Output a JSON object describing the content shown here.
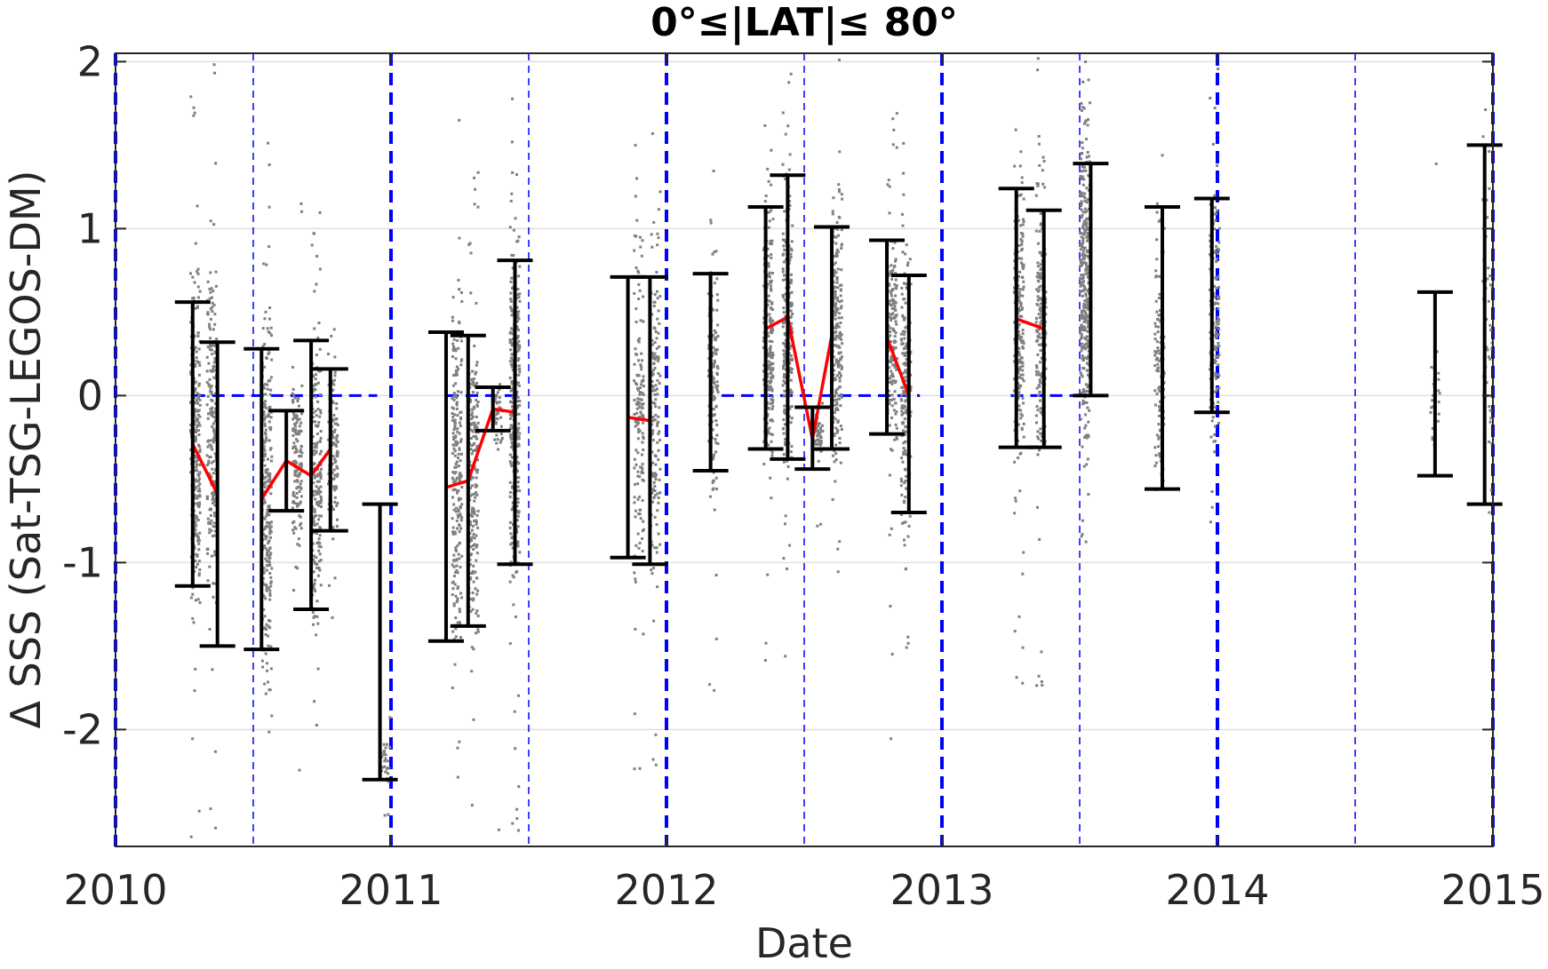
{
  "chart_data": {
    "type": "scatter",
    "title": "0°≤|LAT|≤ 80°",
    "xlabel": "Date",
    "ylabel": "Δ SSS (Sat-TSG-LEGOS-DM)",
    "xlim": [
      2010.0,
      2015.0
    ],
    "ylim": [
      -2.7,
      2.05
    ],
    "xticks": [
      2010,
      2011,
      2012,
      2013,
      2014,
      2015
    ],
    "xtick_labels": [
      "2010",
      "2011",
      "2012",
      "2013",
      "2014",
      "2015"
    ],
    "yticks": [
      -2,
      -1,
      0,
      1,
      2
    ],
    "ytick_labels": [
      "-2",
      "-1",
      "0",
      "1",
      "2"
    ],
    "grid": true,
    "colors": {
      "scatter": "#808080",
      "error_bars": "#000000",
      "mean_line": "#ff0000",
      "reference": "#0000ff",
      "grid": "#e0e0e0"
    },
    "reference_lines": {
      "year_boundaries": [
        2010.0,
        2011.0,
        2012.0,
        2013.0,
        2014.0,
        2015.0
      ],
      "mid_years": [
        2010.5,
        2011.5,
        2012.5,
        2013.5,
        2014.5
      ],
      "zero_segments": [
        [
          2010.28,
          2010.95
        ],
        [
          2011.2,
          2011.48
        ],
        [
          2012.2,
          2012.92
        ],
        [
          2013.25,
          2013.5
        ]
      ]
    },
    "series": [
      {
        "kind": "scatter_strips",
        "strips": [
          {
            "x": 2010.29,
            "center": -0.3,
            "spread": 0.9,
            "count": 260,
            "ymin": -2.7,
            "ymax": 2.05
          },
          {
            "x": 2010.35,
            "center": -0.2,
            "spread": 0.9,
            "count": 220,
            "ymin": -2.7,
            "ymax": 2.05
          },
          {
            "x": 2010.55,
            "center": -0.6,
            "spread": 0.9,
            "count": 260,
            "ymin": -2.7,
            "ymax": 1.8
          },
          {
            "x": 2010.66,
            "center": -0.4,
            "spread": 0.45,
            "count": 140,
            "ymin": -2.4,
            "ymax": 1.2
          },
          {
            "x": 2010.73,
            "center": -0.5,
            "spread": 0.8,
            "count": 200,
            "ymin": -2.2,
            "ymax": 1.2
          },
          {
            "x": 2010.79,
            "center": -0.3,
            "spread": 0.5,
            "count": 120,
            "ymin": -1.9,
            "ymax": 0.5
          },
          {
            "x": 2010.98,
            "center": -2.2,
            "spread": 0.2,
            "count": 30,
            "ymin": -2.7,
            "ymax": -1.9
          },
          {
            "x": 2011.24,
            "center": -0.5,
            "spread": 0.9,
            "count": 220,
            "ymin": -2.6,
            "ymax": 1.7
          },
          {
            "x": 2011.3,
            "center": -0.5,
            "spread": 0.9,
            "count": 200,
            "ymin": -2.6,
            "ymax": 1.7
          },
          {
            "x": 2011.39,
            "center": -0.1,
            "spread": 0.15,
            "count": 40,
            "ymin": -2.7,
            "ymax": 0.9
          },
          {
            "x": 2011.45,
            "center": -0.1,
            "spread": 0.9,
            "count": 320,
            "ymin": -2.7,
            "ymax": 2.05
          },
          {
            "x": 2011.9,
            "center": -0.1,
            "spread": 0.85,
            "count": 150,
            "ymin": -2.3,
            "ymax": 1.6
          },
          {
            "x": 2011.96,
            "center": -0.15,
            "spread": 0.85,
            "count": 150,
            "ymin": -2.3,
            "ymax": 1.6
          },
          {
            "x": 2012.17,
            "center": 0.15,
            "spread": 0.6,
            "count": 150,
            "ymin": -1.9,
            "ymax": 1.4
          },
          {
            "x": 2012.37,
            "center": 0.4,
            "spread": 0.75,
            "count": 220,
            "ymin": -1.8,
            "ymax": 2.05
          },
          {
            "x": 2012.44,
            "center": 0.45,
            "spread": 0.85,
            "count": 240,
            "ymin": -2.0,
            "ymax": 2.05
          },
          {
            "x": 2012.55,
            "center": -0.25,
            "spread": 0.15,
            "count": 50,
            "ymin": -1.2,
            "ymax": 0.6
          },
          {
            "x": 2012.62,
            "center": 0.35,
            "spread": 0.7,
            "count": 220,
            "ymin": -1.3,
            "ymax": 2.05
          },
          {
            "x": 2012.82,
            "center": 0.35,
            "spread": 0.6,
            "count": 170,
            "ymin": -2.2,
            "ymax": 2.05
          },
          {
            "x": 2012.87,
            "center": 0.0,
            "spread": 0.7,
            "count": 200,
            "ymin": -1.6,
            "ymax": 1.7
          },
          {
            "x": 2013.28,
            "center": 0.45,
            "spread": 0.75,
            "count": 220,
            "ymin": -1.8,
            "ymax": 2.05
          },
          {
            "x": 2013.36,
            "center": 0.4,
            "spread": 0.7,
            "count": 200,
            "ymin": -1.8,
            "ymax": 2.05
          },
          {
            "x": 2013.52,
            "center": 0.7,
            "spread": 0.8,
            "count": 330,
            "ymin": -1.0,
            "ymax": 2.05
          },
          {
            "x": 2013.79,
            "center": 0.3,
            "spread": 0.8,
            "count": 120,
            "ymin": -2.0,
            "ymax": 2.05
          },
          {
            "x": 2013.99,
            "center": 0.5,
            "spread": 0.75,
            "count": 150,
            "ymin": -1.0,
            "ymax": 2.05
          },
          {
            "x": 2014.79,
            "center": 0.0,
            "spread": 0.3,
            "count": 30,
            "ymin": -1.1,
            "ymax": 1.5
          },
          {
            "x": 2014.98,
            "center": 0.4,
            "spread": 1.0,
            "count": 50,
            "ymin": -0.7,
            "ymax": 2.05
          }
        ]
      },
      {
        "kind": "error_bars",
        "bars": [
          {
            "x": 2010.28,
            "low": -1.14,
            "high": 0.56
          },
          {
            "x": 2010.37,
            "low": -1.5,
            "high": 0.32
          },
          {
            "x": 2010.53,
            "low": -1.52,
            "high": 0.28
          },
          {
            "x": 2010.62,
            "low": -0.69,
            "high": -0.09
          },
          {
            "x": 2010.71,
            "low": -1.28,
            "high": 0.33
          },
          {
            "x": 2010.78,
            "low": -0.81,
            "high": 0.16
          },
          {
            "x": 2010.96,
            "low": -2.3,
            "high": -0.65
          },
          {
            "x": 2011.2,
            "low": -1.47,
            "high": 0.38
          },
          {
            "x": 2011.28,
            "low": -1.38,
            "high": 0.36
          },
          {
            "x": 2011.37,
            "low": -0.21,
            "high": 0.05
          },
          {
            "x": 2011.45,
            "low": -1.01,
            "high": 0.81
          },
          {
            "x": 2011.86,
            "low": -0.97,
            "high": 0.71
          },
          {
            "x": 2011.94,
            "low": -1.01,
            "high": 0.71
          },
          {
            "x": 2012.16,
            "low": -0.45,
            "high": 0.73
          },
          {
            "x": 2012.36,
            "low": -0.32,
            "high": 1.13
          },
          {
            "x": 2012.44,
            "low": -0.38,
            "high": 1.32
          },
          {
            "x": 2012.53,
            "low": -0.44,
            "high": -0.07
          },
          {
            "x": 2012.6,
            "low": -0.32,
            "high": 1.01
          },
          {
            "x": 2012.8,
            "low": -0.23,
            "high": 0.93
          },
          {
            "x": 2012.88,
            "low": -0.7,
            "high": 0.72
          },
          {
            "x": 2013.27,
            "low": -0.31,
            "high": 1.24
          },
          {
            "x": 2013.37,
            "low": -0.31,
            "high": 1.11
          },
          {
            "x": 2013.54,
            "low": 0.0,
            "high": 1.39
          },
          {
            "x": 2013.8,
            "low": -0.56,
            "high": 1.13
          },
          {
            "x": 2013.98,
            "low": -0.1,
            "high": 1.18
          },
          {
            "x": 2014.79,
            "low": -0.48,
            "high": 0.62
          },
          {
            "x": 2014.97,
            "low": -0.65,
            "high": 1.5
          }
        ]
      },
      {
        "kind": "mean_lines",
        "segments": [
          {
            "x": [
              2010.28,
              2010.37
            ],
            "y": [
              -0.29,
              -0.59
            ]
          },
          {
            "x": [
              2010.53,
              2010.62,
              2010.71,
              2010.78
            ],
            "y": [
              -0.62,
              -0.39,
              -0.48,
              -0.32
            ]
          },
          {
            "x": [
              2011.2,
              2011.28,
              2011.37,
              2011.45
            ],
            "y": [
              -0.55,
              -0.51,
              -0.08,
              -0.1
            ]
          },
          {
            "x": [
              2011.86,
              2011.94
            ],
            "y": [
              -0.13,
              -0.15
            ]
          },
          {
            "x": [
              2012.36,
              2012.44,
              2012.53,
              2012.6
            ],
            "y": [
              0.4,
              0.47,
              -0.26,
              0.36
            ]
          },
          {
            "x": [
              2012.8,
              2012.88
            ],
            "y": [
              0.35,
              0.0
            ]
          },
          {
            "x": [
              2013.27,
              2013.37
            ],
            "y": [
              0.46,
              0.4
            ]
          }
        ]
      }
    ]
  }
}
